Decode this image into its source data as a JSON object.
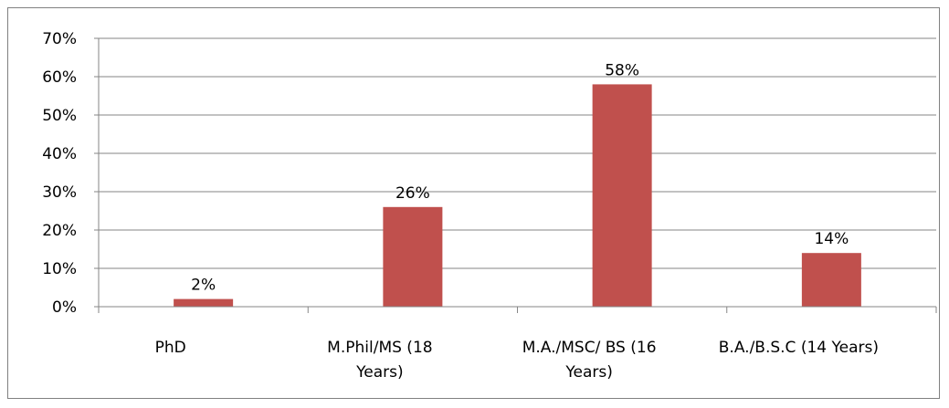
{
  "chart_data": {
    "type": "bar",
    "categories": [
      [
        "PhD"
      ],
      [
        "M.Phil/MS (18",
        "Years)"
      ],
      [
        "M.A./MSC/ BS (16",
        "Years)"
      ],
      [
        "B.A./B.S.C (14 Years)"
      ]
    ],
    "values": [
      2,
      26,
      58,
      14
    ],
    "data_labels": [
      "2%",
      "26%",
      "58%",
      "14%"
    ],
    "ylim": [
      0,
      70
    ],
    "yticks": [
      0,
      10,
      20,
      30,
      40,
      50,
      60,
      70
    ],
    "ytick_labels": [
      "0%",
      "10%",
      "20%",
      "30%",
      "40%",
      "50%",
      "60%",
      "70%"
    ],
    "grid": true,
    "legend": "none",
    "bar_color": "#C0504D",
    "grid_color": "#868686"
  }
}
